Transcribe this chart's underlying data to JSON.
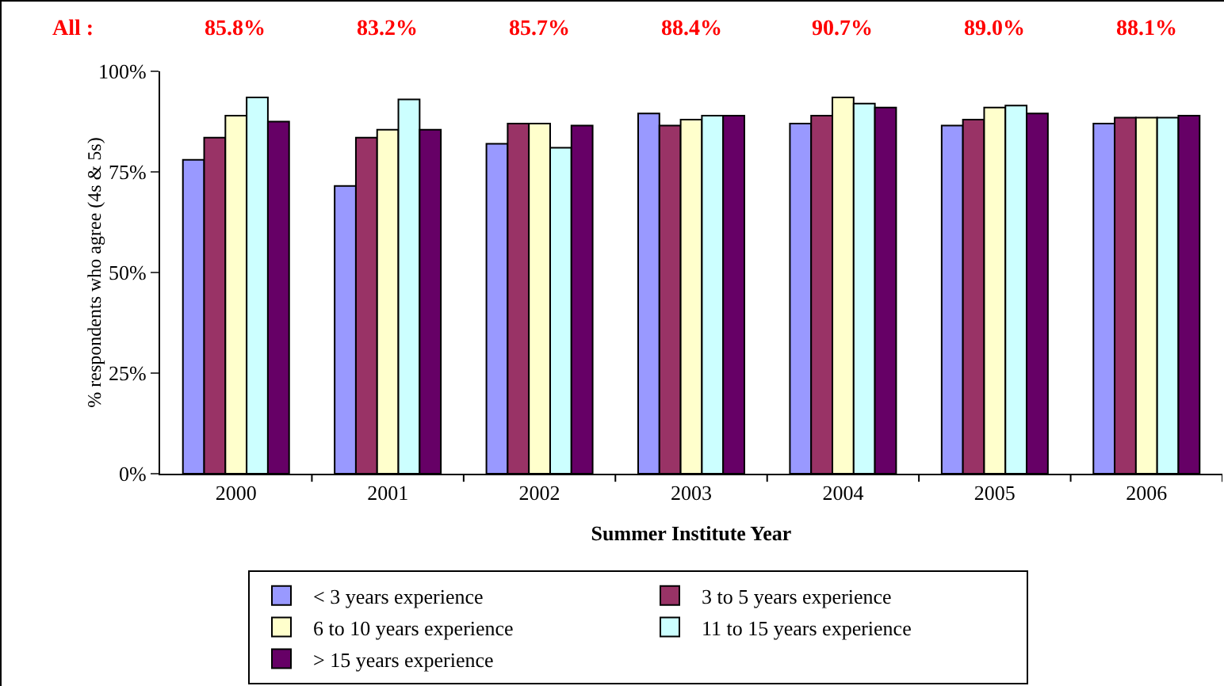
{
  "chart_data": {
    "type": "bar",
    "xlabel": "Summer Institute Year",
    "ylabel": "% respondents who agree (4s & 5s)",
    "categories": [
      "2000",
      "2001",
      "2002",
      "2003",
      "2004",
      "2005",
      "2006"
    ],
    "series": [
      {
        "name": "< 3 years experience",
        "color": "#9999ff",
        "values": [
          78,
          71.5,
          82,
          89.5,
          87,
          86.5,
          87
        ]
      },
      {
        "name": "3 to 5 years experience",
        "color": "#993366",
        "values": [
          83.5,
          83.5,
          87,
          86.5,
          89,
          88,
          88.5
        ]
      },
      {
        "name": "6 to 10 years experience",
        "color": "#ffffcc",
        "values": [
          89,
          85.5,
          87,
          88,
          93.5,
          91,
          88.5
        ]
      },
      {
        "name": "11 to 15 years experience",
        "color": "#ccffff",
        "values": [
          93.5,
          93,
          81,
          89,
          92,
          91.5,
          88.5
        ]
      },
      {
        "name": "> 15 years experience",
        "color": "#660066",
        "values": [
          87.5,
          85.5,
          86.5,
          89,
          91,
          89.5,
          89
        ]
      }
    ],
    "ylim": [
      0,
      100
    ],
    "yticks": [
      {
        "value": 0,
        "label": "0%"
      },
      {
        "value": 25,
        "label": "25%"
      },
      {
        "value": 50,
        "label": "50%"
      },
      {
        "value": 75,
        "label": "75%"
      },
      {
        "value": 100,
        "label": "100%"
      }
    ],
    "grid": false,
    "legend": "bottom",
    "annotations": [
      "All :",
      "85.8%",
      "83.2%",
      "85.7%",
      "88.4%",
      "90.7%",
      "89.0%",
      "88.1%"
    ]
  }
}
